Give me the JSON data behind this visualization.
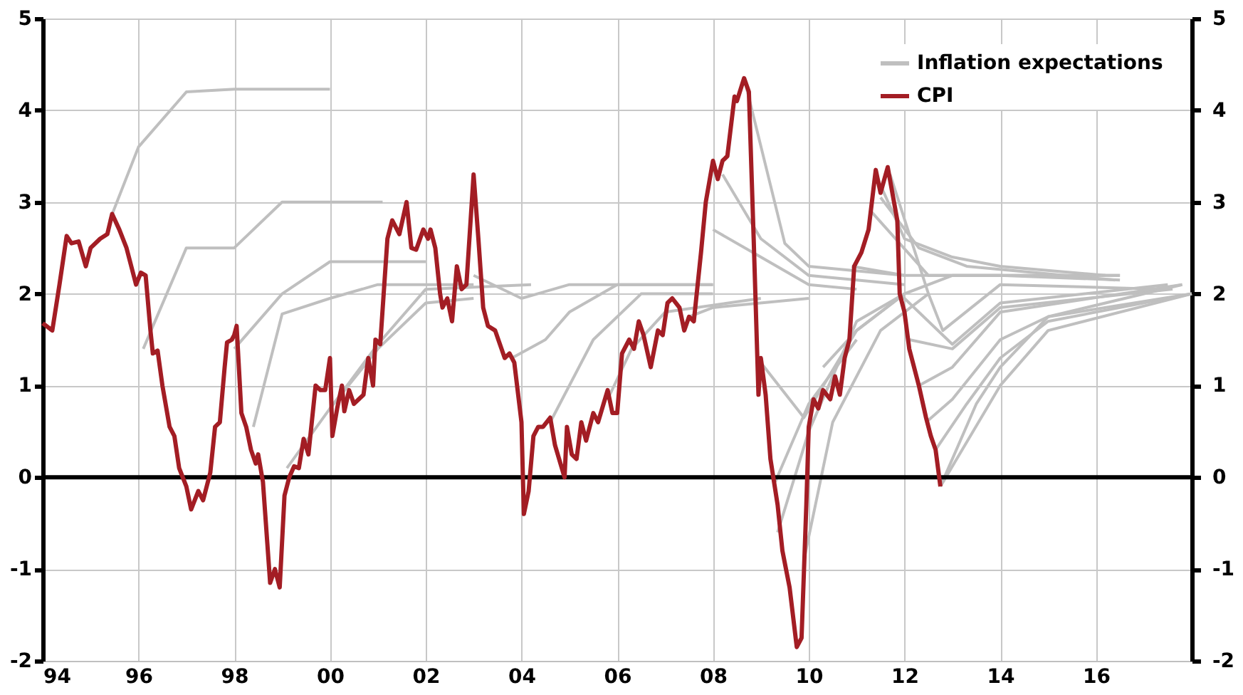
{
  "chart_data": {
    "type": "line",
    "xlim": [
      1994,
      2018
    ],
    "xticks": [
      {
        "value": 1994,
        "label": "94"
      },
      {
        "value": 1996,
        "label": "96"
      },
      {
        "value": 1998,
        "label": "98"
      },
      {
        "value": 2000,
        "label": "00"
      },
      {
        "value": 2002,
        "label": "02"
      },
      {
        "value": 2004,
        "label": "04"
      },
      {
        "value": 2006,
        "label": "06"
      },
      {
        "value": 2008,
        "label": "08"
      },
      {
        "value": 2010,
        "label": "10"
      },
      {
        "value": 2012,
        "label": "12"
      },
      {
        "value": 2014,
        "label": "14"
      },
      {
        "value": 2016,
        "label": "16"
      },
      {
        "value": 2018,
        "label": null
      }
    ],
    "ylim": [
      -2,
      5
    ],
    "yticks": [
      -2,
      -1,
      0,
      1,
      2,
      3,
      4,
      5
    ],
    "y2lim": [
      -2,
      5
    ],
    "y2ticks": [
      -2,
      -1,
      0,
      1,
      2,
      3,
      4,
      5
    ],
    "grid": true,
    "legend": "top right",
    "line_style": "solid",
    "marker": "none",
    "ref_lines": [
      {
        "axis": "y",
        "value": 0,
        "label": null,
        "color": "#000000"
      }
    ],
    "series": [
      {
        "name": "Inflation expectations",
        "color": "#bfbfbf",
        "x": [
          1995.4,
          1996.0,
          1997.0,
          1998.0,
          2000.0
        ],
        "values": [
          2.8,
          3.6,
          4.2,
          4.23,
          4.23
        ]
      },
      {
        "color": "#bfbfbf",
        "x": [
          1996.1,
          1997.0,
          1998.0,
          1999.0,
          2001.1
        ],
        "values": [
          1.4,
          2.5,
          2.5,
          3.0,
          3.0
        ]
      },
      {
        "color": "#bfbfbf",
        "x": [
          1998.0,
          1999.0,
          2000.0,
          2002.0
        ],
        "values": [
          1.4,
          2.0,
          2.35,
          2.35
        ]
      },
      {
        "color": "#bfbfbf",
        "x": [
          1998.4,
          1999.0,
          2000.0,
          2001.0,
          2003.0
        ],
        "values": [
          0.55,
          1.78,
          1.95,
          2.1,
          2.1
        ]
      },
      {
        "color": "#bfbfbf",
        "x": [
          1999.1,
          2000.0,
          2001.0,
          2002.0,
          2004.2
        ],
        "values": [
          0.1,
          0.75,
          1.45,
          2.05,
          2.1
        ]
      },
      {
        "color": "#bfbfbf",
        "x": [
          2000.0,
          2001.0,
          2002.0,
          2003.0
        ],
        "values": [
          0.75,
          1.4,
          1.9,
          1.95
        ]
      },
      {
        "color": "#bfbfbf",
        "x": [
          2003.0,
          2004.0,
          2005.0,
          2008.0
        ],
        "values": [
          2.2,
          1.95,
          2.1,
          2.1
        ]
      },
      {
        "color": "#bfbfbf",
        "x": [
          2003.8,
          2004.5,
          2005.0,
          2006.0,
          2008.0
        ],
        "values": [
          1.3,
          1.5,
          1.8,
          2.1,
          2.1
        ]
      },
      {
        "color": "#bfbfbf",
        "x": [
          2004.6,
          2005.5,
          2006.5,
          2008.0
        ],
        "values": [
          0.6,
          1.5,
          2.0,
          2.0
        ]
      },
      {
        "color": "#bfbfbf",
        "x": [
          2005.8,
          2006.3,
          2007.0,
          2009.0
        ],
        "values": [
          0.85,
          1.4,
          1.8,
          1.95
        ]
      },
      {
        "color": "#bfbfbf",
        "x": [
          2007.5,
          2008.0,
          2010.0
        ],
        "values": [
          1.75,
          1.85,
          1.95
        ]
      },
      {
        "color": "#bfbfbf",
        "x": [
          2008.0,
          2009.0,
          2010.0,
          2011.0
        ],
        "values": [
          2.7,
          2.4,
          2.1,
          2.05
        ]
      },
      {
        "color": "#bfbfbf",
        "x": [
          2008.2,
          2009.0,
          2010.0,
          2012.0
        ],
        "values": [
          3.3,
          2.6,
          2.2,
          2.1
        ]
      },
      {
        "color": "#bfbfbf",
        "x": [
          2008.65,
          2009.5,
          2010.0,
          2012.0
        ],
        "values": [
          4.35,
          2.55,
          2.3,
          2.2
        ]
      },
      {
        "color": "#bfbfbf",
        "x": [
          2009.0,
          2009.9,
          2011.0,
          2012.0
        ],
        "values": [
          1.25,
          0.65,
          1.6,
          2.0
        ]
      },
      {
        "color": "#bfbfbf",
        "x": [
          2009.35,
          2010.0,
          2011.0,
          2012.0
        ],
        "values": [
          -0.6,
          0.5,
          1.7,
          2.0
        ]
      },
      {
        "color": "#bfbfbf",
        "x": [
          2009.3,
          2010.0,
          2011.0
        ],
        "values": [
          -0.05,
          0.8,
          1.5
        ]
      },
      {
        "color": "#bfbfbf",
        "x": [
          2009.9,
          2010.5,
          2011.5,
          2012.5
        ],
        "values": [
          -0.9,
          0.6,
          1.6,
          2.0
        ]
      },
      {
        "color": "#bfbfbf",
        "x": [
          2010.3,
          2011.0,
          2012.0,
          2013.0,
          2016.5
        ],
        "values": [
          1.2,
          1.6,
          2.0,
          2.2,
          2.2
        ]
      },
      {
        "color": "#bfbfbf",
        "x": [
          2010.9,
          2012.0,
          2016.5
        ],
        "values": [
          2.3,
          2.2,
          2.2
        ]
      },
      {
        "color": "#bfbfbf",
        "x": [
          2011.4,
          2012.0,
          2013.0,
          2014.0,
          2016.2
        ],
        "values": [
          3.3,
          2.6,
          2.4,
          2.3,
          2.2
        ]
      },
      {
        "color": "#bfbfbf",
        "x": [
          2011.5,
          2012.3,
          2013.3,
          2016.4
        ],
        "values": [
          3.05,
          2.5,
          2.3,
          2.15
        ]
      },
      {
        "color": "#bfbfbf",
        "x": [
          2011.3,
          2012.5,
          2014.0,
          2016.5
        ],
        "values": [
          2.9,
          2.2,
          2.2,
          2.15
        ]
      },
      {
        "color": "#bfbfbf",
        "x": [
          2011.7,
          2012.5,
          2012.8,
          2014.0,
          2017.4
        ],
        "values": [
          3.3,
          2.0,
          1.6,
          2.1,
          2.05
        ]
      },
      {
        "color": "#bfbfbf",
        "x": [
          2011.9,
          2013.0,
          2014.0,
          2017.5
        ],
        "values": [
          2.0,
          1.45,
          1.9,
          2.1
        ]
      },
      {
        "color": "#bfbfbf",
        "x": [
          2012.1,
          2013.0,
          2014.0,
          2017.6
        ],
        "values": [
          1.5,
          1.4,
          1.85,
          2.05
        ]
      },
      {
        "color": "#bfbfbf",
        "x": [
          2012.3,
          2013.0,
          2014.0,
          2017.8
        ],
        "values": [
          1.0,
          1.2,
          1.8,
          2.1
        ]
      },
      {
        "color": "#bfbfbf",
        "x": [
          2012.45,
          2013.0,
          2014.0,
          2015.0,
          2018.0
        ],
        "values": [
          0.6,
          0.85,
          1.5,
          1.75,
          2.0
        ]
      },
      {
        "color": "#bfbfbf",
        "x": [
          2012.65,
          2013.3,
          2014.0,
          2015.0,
          2018.0
        ],
        "values": [
          0.3,
          0.8,
          1.3,
          1.7,
          2.0
        ]
      },
      {
        "color": "#bfbfbf",
        "x": [
          2012.75,
          2014.0,
          2015.0,
          2018.0
        ],
        "values": [
          -0.1,
          1.0,
          1.6,
          2.0
        ]
      },
      {
        "color": "#bfbfbf",
        "x": [
          2012.75,
          2013.5,
          2014.0,
          2015.0,
          2017.8
        ],
        "values": [
          -0.1,
          0.8,
          1.2,
          1.75,
          2.1
        ]
      },
      {
        "name": "CPI",
        "color": "#a31d24",
        "x": [
          1994.0,
          1994.2,
          1994.35,
          1994.5,
          1994.6,
          1994.75,
          1994.9,
          1995.0,
          1995.2,
          1995.35,
          1995.45,
          1995.6,
          1995.75,
          1995.95,
          1996.05,
          1996.15,
          1996.25,
          1996.3,
          1996.4,
          1996.5,
          1996.65,
          1996.75,
          1996.85,
          1997.0,
          1997.1,
          1997.25,
          1997.35,
          1997.5,
          1997.6,
          1997.7,
          1997.8,
          1997.85,
          1997.95,
          1998.0,
          1998.05,
          1998.15,
          1998.25,
          1998.35,
          1998.45,
          1998.5,
          1998.6,
          1998.75,
          1998.85,
          1998.95,
          1999.05,
          1999.15,
          1999.25,
          1999.35,
          1999.45,
          1999.55,
          1999.7,
          1999.8,
          1999.9,
          2000.0,
          2000.05,
          2000.15,
          2000.25,
          2000.3,
          2000.4,
          2000.5,
          2000.6,
          2000.7,
          2000.8,
          2000.9,
          2000.95,
          2001.05,
          2001.2,
          2001.3,
          2001.45,
          2001.6,
          2001.7,
          2001.8,
          2001.95,
          2002.05,
          2002.1,
          2002.2,
          2002.3,
          2002.35,
          2002.45,
          2002.55,
          2002.65,
          2002.75,
          2002.85,
          2003.0,
          2003.1,
          2003.2,
          2003.3,
          2003.45,
          2003.55,
          2003.65,
          2003.75,
          2003.85,
          2004.0,
          2004.05,
          2004.15,
          2004.25,
          2004.35,
          2004.45,
          2004.6,
          2004.7,
          2004.9,
          2004.95,
          2005.05,
          2005.15,
          2005.25,
          2005.35,
          2005.5,
          2005.6,
          2005.8,
          2005.9,
          2006.0,
          2006.1,
          2006.25,
          2006.35,
          2006.45,
          2006.55,
          2006.7,
          2006.85,
          2006.95,
          2007.05,
          2007.15,
          2007.3,
          2007.4,
          2007.5,
          2007.6,
          2007.75,
          2007.85,
          2008.0,
          2008.1,
          2008.2,
          2008.3,
          2008.45,
          2008.5,
          2008.65,
          2008.75,
          2008.85,
          2008.95,
          2009.0,
          2009.1,
          2009.2,
          2009.35,
          2009.45,
          2009.6,
          2009.75,
          2009.85,
          2009.95,
          2010.0,
          2010.1,
          2010.2,
          2010.3,
          2010.45,
          2010.55,
          2010.65,
          2010.75,
          2010.85,
          2010.95,
          2011.1,
          2011.25,
          2011.4,
          2011.5,
          2011.65,
          2011.85,
          2011.9,
          2012.0,
          2012.1,
          2012.3,
          2012.45,
          2012.55,
          2012.65,
          2012.75
        ],
        "values": [
          1.68,
          1.6,
          2.1,
          2.63,
          2.55,
          2.57,
          2.3,
          2.5,
          2.6,
          2.65,
          2.87,
          2.7,
          2.5,
          2.1,
          2.23,
          2.2,
          1.6,
          1.35,
          1.38,
          1.0,
          0.55,
          0.45,
          0.1,
          -0.1,
          -0.35,
          -0.15,
          -0.25,
          0.05,
          0.55,
          0.6,
          1.2,
          1.47,
          1.5,
          1.55,
          1.65,
          0.7,
          0.55,
          0.3,
          0.15,
          0.25,
          -0.05,
          -1.15,
          -1.0,
          -1.2,
          -0.2,
          0.0,
          0.12,
          0.1,
          0.42,
          0.25,
          1.0,
          0.95,
          0.95,
          1.3,
          0.45,
          0.75,
          1.0,
          0.72,
          0.95,
          0.8,
          0.85,
          0.9,
          1.3,
          1.0,
          1.5,
          1.45,
          2.6,
          2.8,
          2.65,
          3.0,
          2.5,
          2.48,
          2.7,
          2.6,
          2.7,
          2.5,
          2.0,
          1.85,
          1.95,
          1.7,
          2.3,
          2.05,
          2.1,
          3.3,
          2.6,
          1.85,
          1.65,
          1.6,
          1.45,
          1.3,
          1.35,
          1.25,
          0.6,
          -0.4,
          -0.15,
          0.45,
          0.55,
          0.55,
          0.65,
          0.35,
          0.0,
          0.55,
          0.25,
          0.2,
          0.6,
          0.4,
          0.7,
          0.6,
          0.95,
          0.7,
          0.7,
          1.35,
          1.5,
          1.4,
          1.7,
          1.55,
          1.2,
          1.6,
          1.55,
          1.9,
          1.95,
          1.85,
          1.6,
          1.75,
          1.7,
          2.45,
          3.0,
          3.45,
          3.25,
          3.45,
          3.5,
          4.15,
          4.1,
          4.35,
          4.2,
          2.6,
          0.9,
          1.3,
          0.9,
          0.2,
          -0.3,
          -0.8,
          -1.2,
          -1.85,
          -1.75,
          -0.3,
          0.55,
          0.85,
          0.75,
          0.95,
          0.85,
          1.1,
          0.9,
          1.3,
          1.5,
          2.3,
          2.45,
          2.7,
          3.35,
          3.1,
          3.38,
          2.8,
          2.0,
          1.8,
          1.4,
          1.0,
          0.65,
          0.45,
          0.3,
          -0.1
        ]
      }
    ]
  }
}
